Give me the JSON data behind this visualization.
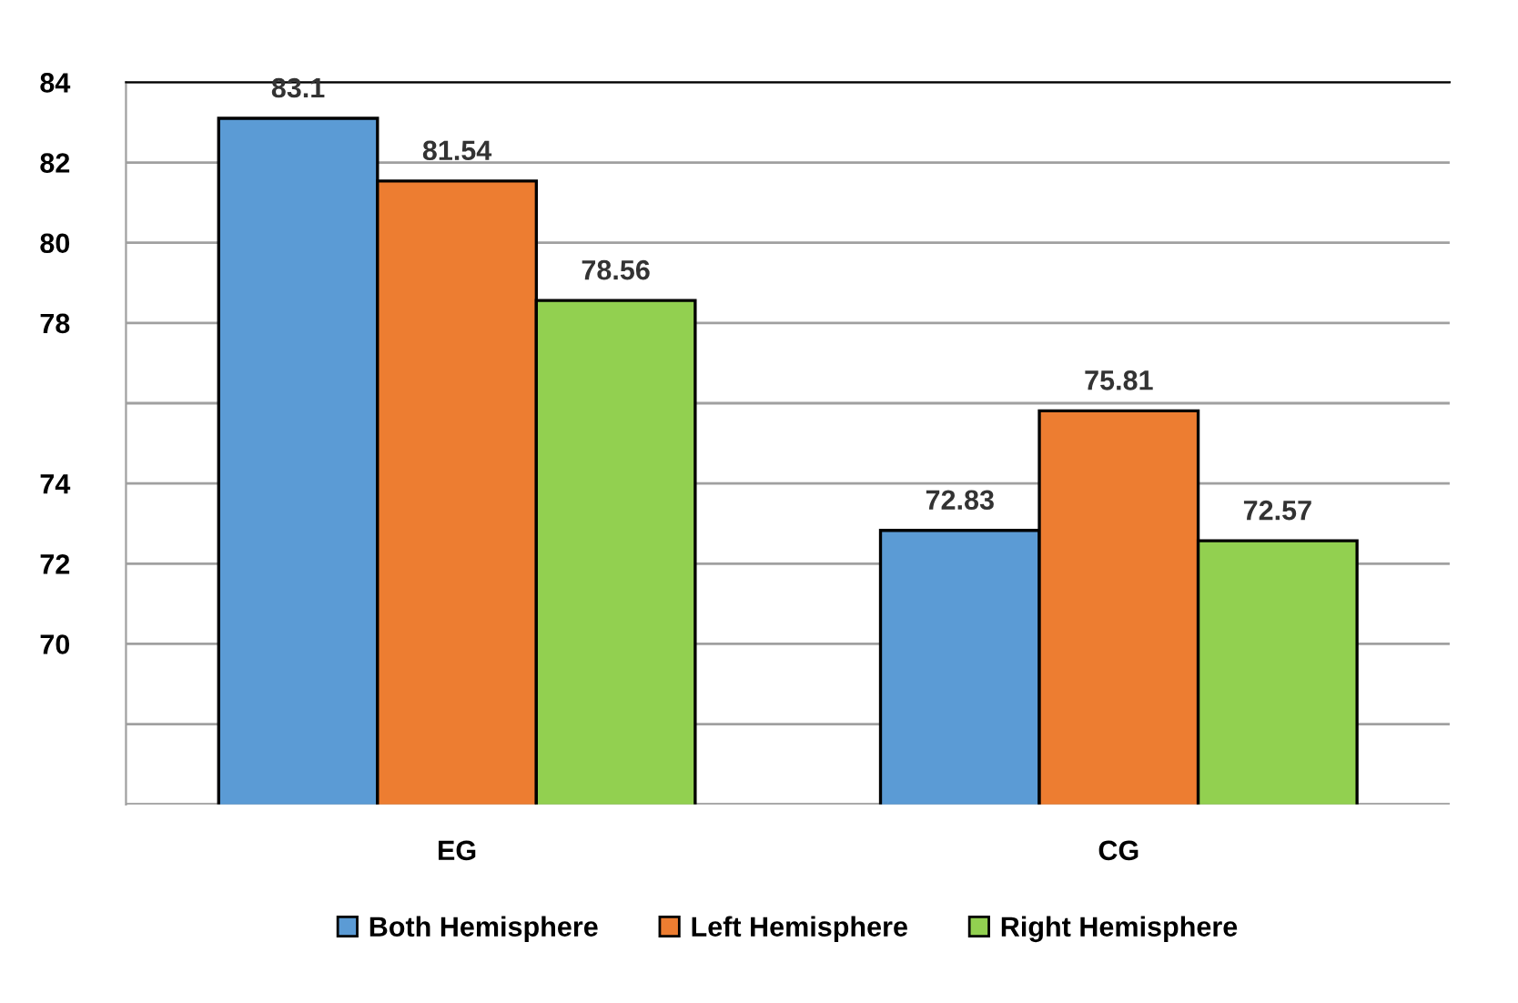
{
  "chart_data": {
    "type": "bar",
    "categories": [
      "EG",
      "CG"
    ],
    "series": [
      {
        "name": "Both Hemisphere",
        "color": "#5b9bd5",
        "values": [
          83.1,
          72.83
        ]
      },
      {
        "name": "Left Hemisphere",
        "color": "#ed7d31",
        "values": [
          81.54,
          75.81
        ]
      },
      {
        "name": "Right Hemisphere",
        "color": "#92d050",
        "values": [
          78.56,
          72.57
        ]
      }
    ],
    "ylim": [
      66,
      84
    ],
    "yticks": [
      {
        "value": 66,
        "label": null
      },
      {
        "value": 68,
        "label": null
      },
      70,
      72,
      74,
      {
        "value": 76,
        "label": null
      },
      78,
      80,
      82,
      84
    ],
    "grid": "y",
    "data_labels": true,
    "legend": "bottom"
  }
}
